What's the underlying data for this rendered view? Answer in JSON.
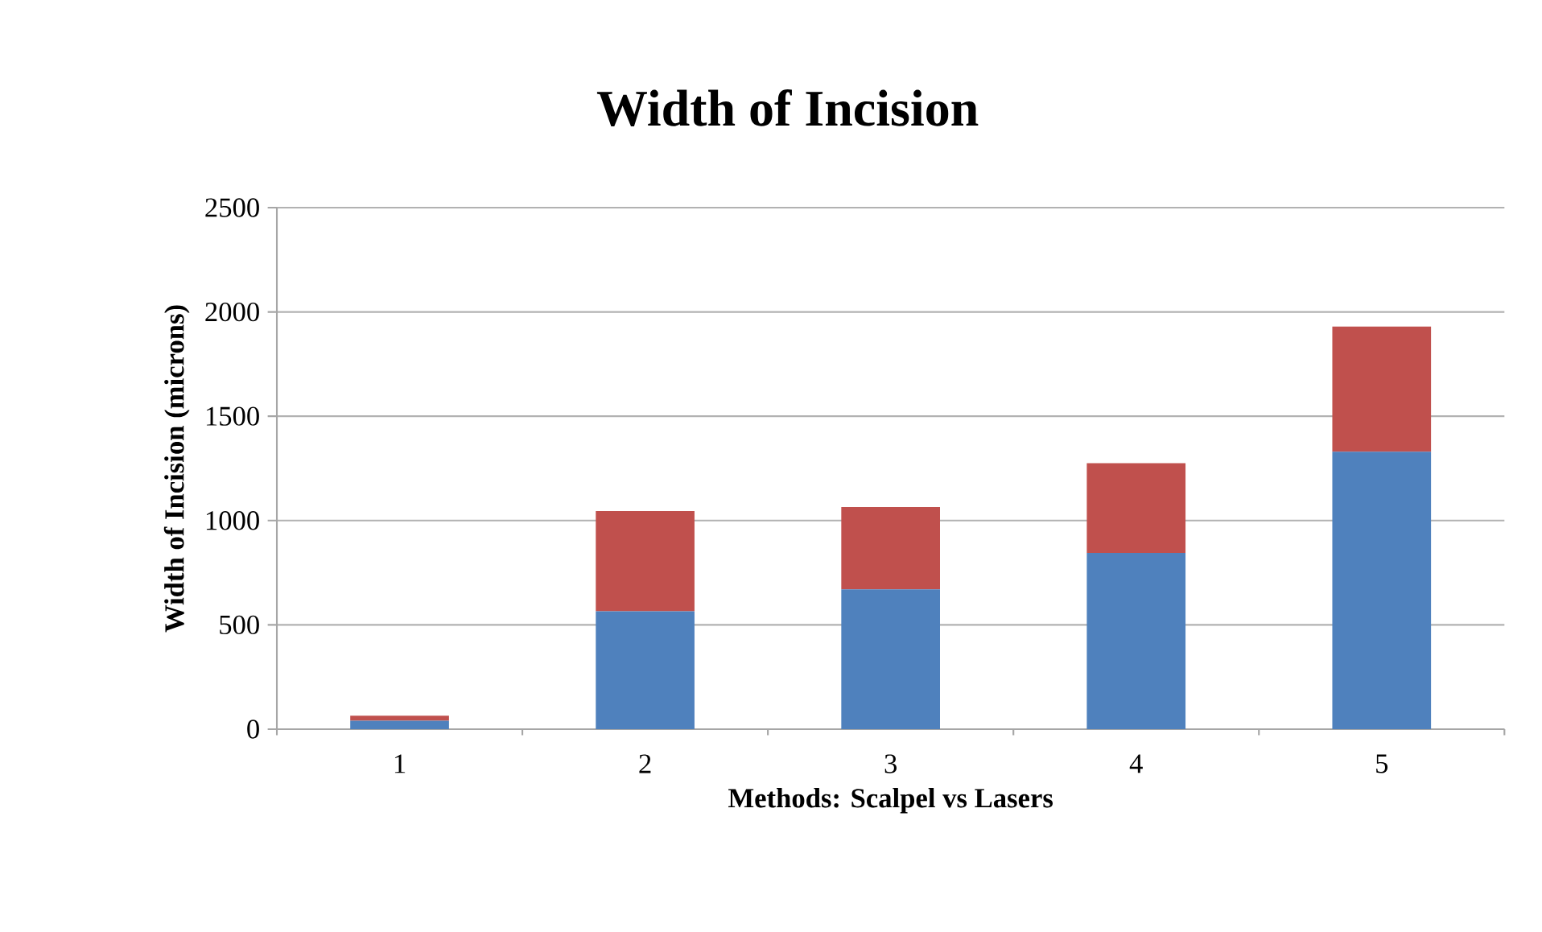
{
  "chart_data": {
    "type": "bar",
    "title": "Width of Incision",
    "xlabel": "Methods:  Scalpel vs Lasers",
    "ylabel": "Width of Incision (microns)",
    "categories": [
      "1",
      "2",
      "3",
      "4",
      "5"
    ],
    "stacked": true,
    "series": [
      {
        "color": "#4f81bd",
        "values": [
          40,
          565,
          670,
          845,
          1330
        ]
      },
      {
        "color": "#c0504d",
        "values": [
          25,
          480,
          395,
          430,
          600
        ]
      }
    ],
    "ylim": [
      0,
      2500
    ],
    "yticks": [
      0,
      500,
      1000,
      1500,
      2000,
      2500
    ],
    "grid": "y"
  }
}
